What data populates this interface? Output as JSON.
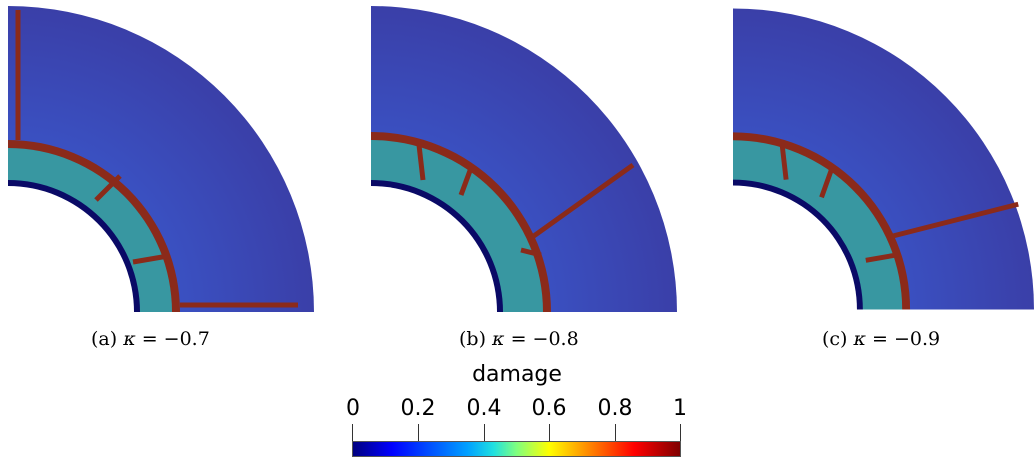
{
  "panels": [
    {
      "label_prefix": "(a)",
      "kappa_symbol": "κ",
      "kappa_value": "= −0.7"
    },
    {
      "label_prefix": "(b)",
      "kappa_symbol": "κ",
      "kappa_value": "= −0.8"
    },
    {
      "label_prefix": "(c)",
      "kappa_symbol": "κ",
      "kappa_value": "= −0.9"
    }
  ],
  "colorbar": {
    "title": "damage",
    "ticks": [
      "0",
      "0.2",
      "0.4",
      "0.6",
      "0.8",
      "1"
    ],
    "range": [
      0,
      1
    ],
    "colormap": [
      "#00007f",
      "#0000ff",
      "#00a0ff",
      "#20e0e0",
      "#7fff7f",
      "#ffff00",
      "#ff7f00",
      "#ff0000",
      "#7f0000"
    ]
  },
  "colors": {
    "background_field": "#3b46b8",
    "crack": "#8b2a1a",
    "inner_ring": "#0a0a66",
    "cell_fill": "#2fa3b0"
  }
}
